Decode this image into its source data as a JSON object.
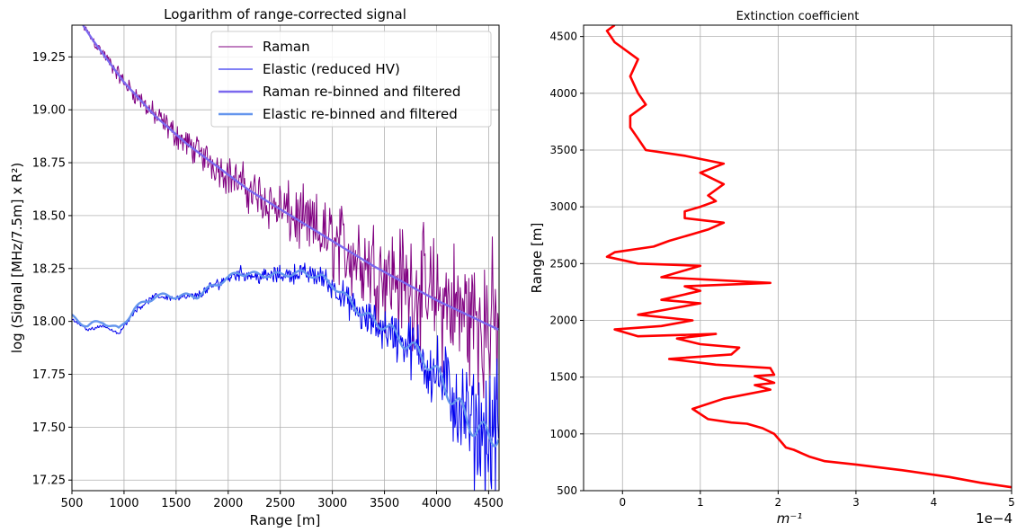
{
  "chart_data": [
    {
      "type": "line",
      "title": "Logarithm of range-corrected signal",
      "xlabel": "Range [m]",
      "ylabel": "log (Signal [MHz/7.5m] x R²)",
      "xlim": [
        500,
        4600
      ],
      "ylim": [
        17.2,
        19.4
      ],
      "xticks": [
        500,
        1000,
        1500,
        2000,
        2500,
        3000,
        3500,
        4000,
        4500
      ],
      "yticks": [
        "17.25",
        "17.50",
        "17.75",
        "18.00",
        "18.25",
        "18.50",
        "18.75",
        "19.00",
        "19.25"
      ],
      "grid": true,
      "legend_position": "top-right",
      "series": [
        {
          "name": "Raman",
          "color": "#800080",
          "style": "noisy",
          "x": [
            500,
            700,
            1000,
            1300,
            1600,
            1900,
            2200,
            2500,
            2800,
            3100,
            3400,
            3700,
            4000,
            4300,
            4600
          ],
          "y": [
            19.48,
            19.33,
            19.13,
            18.97,
            18.84,
            18.73,
            18.62,
            18.53,
            18.44,
            18.35,
            18.26,
            18.18,
            18.1,
            18.03,
            17.96
          ],
          "noise_amplitude": [
            0.01,
            0.02,
            0.03,
            0.04,
            0.05,
            0.06,
            0.08,
            0.1,
            0.12,
            0.15,
            0.18,
            0.2,
            0.22,
            0.25,
            0.28
          ]
        },
        {
          "name": "Elastic (reduced HV)",
          "color": "#0000ee",
          "style": "noisy",
          "x": [
            500,
            650,
            800,
            950,
            1100,
            1300,
            1500,
            1700,
            1900,
            2100,
            2300,
            2500,
            2700,
            2900,
            3100,
            3300,
            3500,
            3700,
            3900,
            4100,
            4300,
            4500,
            4600
          ],
          "y": [
            18.01,
            17.96,
            17.98,
            17.94,
            18.05,
            18.12,
            18.11,
            18.12,
            18.18,
            18.23,
            18.21,
            18.22,
            18.23,
            18.21,
            18.12,
            18.01,
            17.97,
            17.9,
            17.82,
            17.68,
            17.52,
            17.45,
            17.48
          ],
          "noise_amplitude": [
            0.005,
            0.005,
            0.005,
            0.005,
            0.01,
            0.01,
            0.012,
            0.015,
            0.02,
            0.025,
            0.025,
            0.03,
            0.035,
            0.04,
            0.05,
            0.06,
            0.08,
            0.1,
            0.12,
            0.15,
            0.18,
            0.22,
            0.25
          ]
        },
        {
          "name": "Raman re-binned and filtered",
          "color": "#7b68ee",
          "style": "smooth",
          "x": [
            500,
            700,
            1000,
            1300,
            1600,
            1900,
            2200,
            2500,
            2800,
            3100,
            3400,
            3700,
            4000,
            4300,
            4600
          ],
          "y": [
            19.48,
            19.33,
            19.13,
            18.97,
            18.84,
            18.73,
            18.62,
            18.53,
            18.44,
            18.35,
            18.26,
            18.18,
            18.1,
            18.03,
            17.96
          ]
        },
        {
          "name": "Elastic re-binned and filtered",
          "color": "#6495ed",
          "style": "smooth",
          "x": [
            500,
            650,
            800,
            950,
            1100,
            1300,
            1500,
            1700,
            1900,
            2100,
            2300,
            2500,
            2700,
            2900,
            3100,
            3300,
            3500,
            3700,
            3900,
            4100,
            4300,
            4500,
            4600
          ],
          "y": [
            18.02,
            17.98,
            18.0,
            17.96,
            18.06,
            18.12,
            18.12,
            18.12,
            18.18,
            18.23,
            18.22,
            18.22,
            18.23,
            18.21,
            18.13,
            18.03,
            17.98,
            17.9,
            17.82,
            17.68,
            17.53,
            17.45,
            17.48
          ]
        }
      ]
    },
    {
      "type": "line",
      "title": "Extinction coefficient",
      "xlabel": "m⁻¹",
      "ylabel": "Range [m]",
      "x_offset_label": "1e−4",
      "xlim": [
        -0.5,
        5
      ],
      "ylim": [
        500,
        4600
      ],
      "xticks": [
        "0",
        "1",
        "2",
        "3",
        "4",
        "5"
      ],
      "yticks": [
        "500",
        "1000",
        "1500",
        "2000",
        "2500",
        "3000",
        "3500",
        "4000",
        "4500"
      ],
      "grid": true,
      "series": [
        {
          "name": "",
          "color": "#ff0000",
          "x": [
            5.0,
            4.6,
            4.2,
            3.6,
            3.0,
            2.6,
            2.4,
            2.3,
            2.2,
            2.1,
            2.05,
            2.0,
            1.95,
            1.8,
            1.6,
            1.4,
            1.1,
            0.9,
            1.3,
            1.9,
            1.7,
            1.95,
            1.7,
            1.95,
            1.9,
            1.2,
            0.6,
            1.4,
            1.5,
            1.0,
            0.7,
            1.2,
            0.2,
            -0.1,
            0.5,
            0.9,
            0.2,
            0.6,
            1.0,
            0.5,
            1.0,
            0.8,
            1.9,
            0.5,
            1.0,
            0.2,
            -0.2,
            -0.1,
            0.4,
            0.6,
            0.9,
            1.1,
            1.3,
            0.8,
            0.8,
            1.0,
            1.2,
            1.1,
            1.3,
            1.0,
            1.3,
            0.8,
            0.3,
            0.2,
            0.1,
            0.1,
            0.3,
            0.2,
            0.1,
            0.2,
            -0.1,
            -0.2,
            -0.1
          ],
          "y": [
            530,
            570,
            620,
            680,
            730,
            760,
            800,
            830,
            860,
            880,
            920,
            960,
            1000,
            1050,
            1090,
            1100,
            1130,
            1220,
            1310,
            1390,
            1430,
            1450,
            1510,
            1520,
            1580,
            1610,
            1660,
            1700,
            1760,
            1790,
            1840,
            1880,
            1860,
            1920,
            1950,
            2000,
            2050,
            2100,
            2150,
            2180,
            2260,
            2300,
            2330,
            2380,
            2480,
            2500,
            2560,
            2600,
            2650,
            2700,
            2760,
            2800,
            2860,
            2900,
            2960,
            3000,
            3050,
            3100,
            3200,
            3300,
            3380,
            3450,
            3500,
            3600,
            3700,
            3800,
            3900,
            4000,
            4150,
            4300,
            4450,
            4550,
            4600
          ]
        }
      ]
    }
  ]
}
